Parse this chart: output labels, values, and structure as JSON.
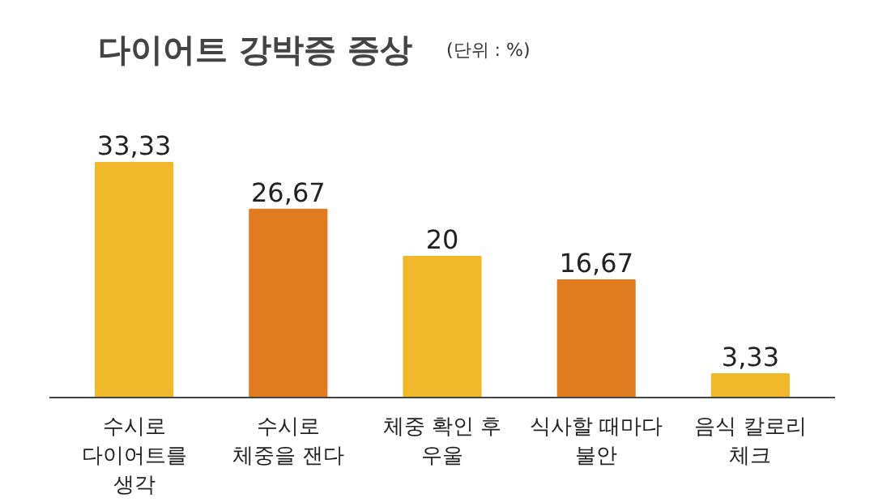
{
  "chart_data": {
    "type": "bar",
    "title": "다이어트 강박증 증상",
    "subtitle": "(단위 : %)",
    "categories": [
      "수시로\n다이어트를\n생각",
      "수시로\n체중을 잰다",
      "체중 확인 후\n우울",
      "식사할 때마다\n불안",
      "음식 칼로리\n체크"
    ],
    "values": [
      33.33,
      26.67,
      20,
      16.67,
      3.33
    ],
    "colors": [
      "#f0b82a",
      "#e07b20",
      "#f0b82a",
      "#e07b20",
      "#f0b82a"
    ],
    "value_labels": [
      "33,33",
      "26,67",
      "20",
      "16,67",
      "3,33"
    ],
    "grid": false
  }
}
